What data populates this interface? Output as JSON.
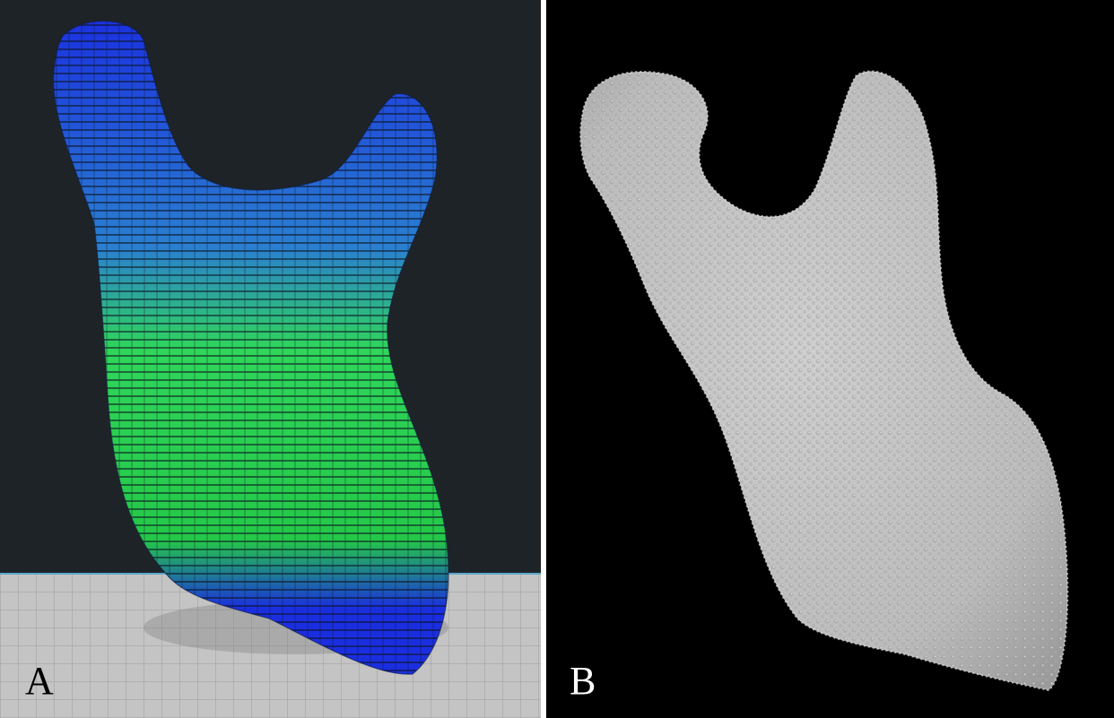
{
  "figure": {
    "panel_a": {
      "label": "A",
      "background_color": "#1e2328",
      "floor_color": "#c4c4c4",
      "gradient_colors": [
        "#1a2ee0",
        "#2a7fd0",
        "#2fd65a",
        "#24c848",
        "#1a2ee0"
      ]
    },
    "panel_b": {
      "label": "B",
      "background_color": "#000000",
      "object_color": "#c6c6c6"
    }
  }
}
